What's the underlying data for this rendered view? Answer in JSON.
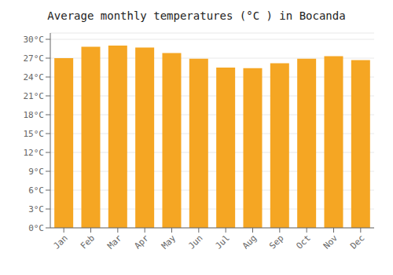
{
  "chart_data": {
    "type": "bar",
    "title": "Average monthly temperatures (°C ) in Bocanda",
    "categories": [
      "Jan",
      "Feb",
      "Mar",
      "Apr",
      "May",
      "Jun",
      "Jul",
      "Aug",
      "Sep",
      "Oct",
      "Nov",
      "Dec"
    ],
    "values": [
      27.0,
      28.8,
      29.0,
      28.7,
      27.8,
      26.9,
      25.5,
      25.4,
      26.2,
      26.9,
      27.3,
      26.7
    ],
    "color": "#F5A623",
    "ylim": [
      0,
      31
    ],
    "yticks": [
      {
        "value": 0,
        "label": "0°C"
      },
      {
        "value": 3,
        "label": "3°C"
      },
      {
        "value": 6,
        "label": "6°C"
      },
      {
        "value": 9,
        "label": "9°C"
      },
      {
        "value": 12,
        "label": "12°C"
      },
      {
        "value": 15,
        "label": "15°C"
      },
      {
        "value": 18,
        "label": "18°C"
      },
      {
        "value": 21,
        "label": "21°C"
      },
      {
        "value": 24,
        "label": "24°C"
      },
      {
        "value": 27,
        "label": "27°C"
      },
      {
        "value": 30,
        "label": "30°C"
      }
    ],
    "grid": true
  }
}
